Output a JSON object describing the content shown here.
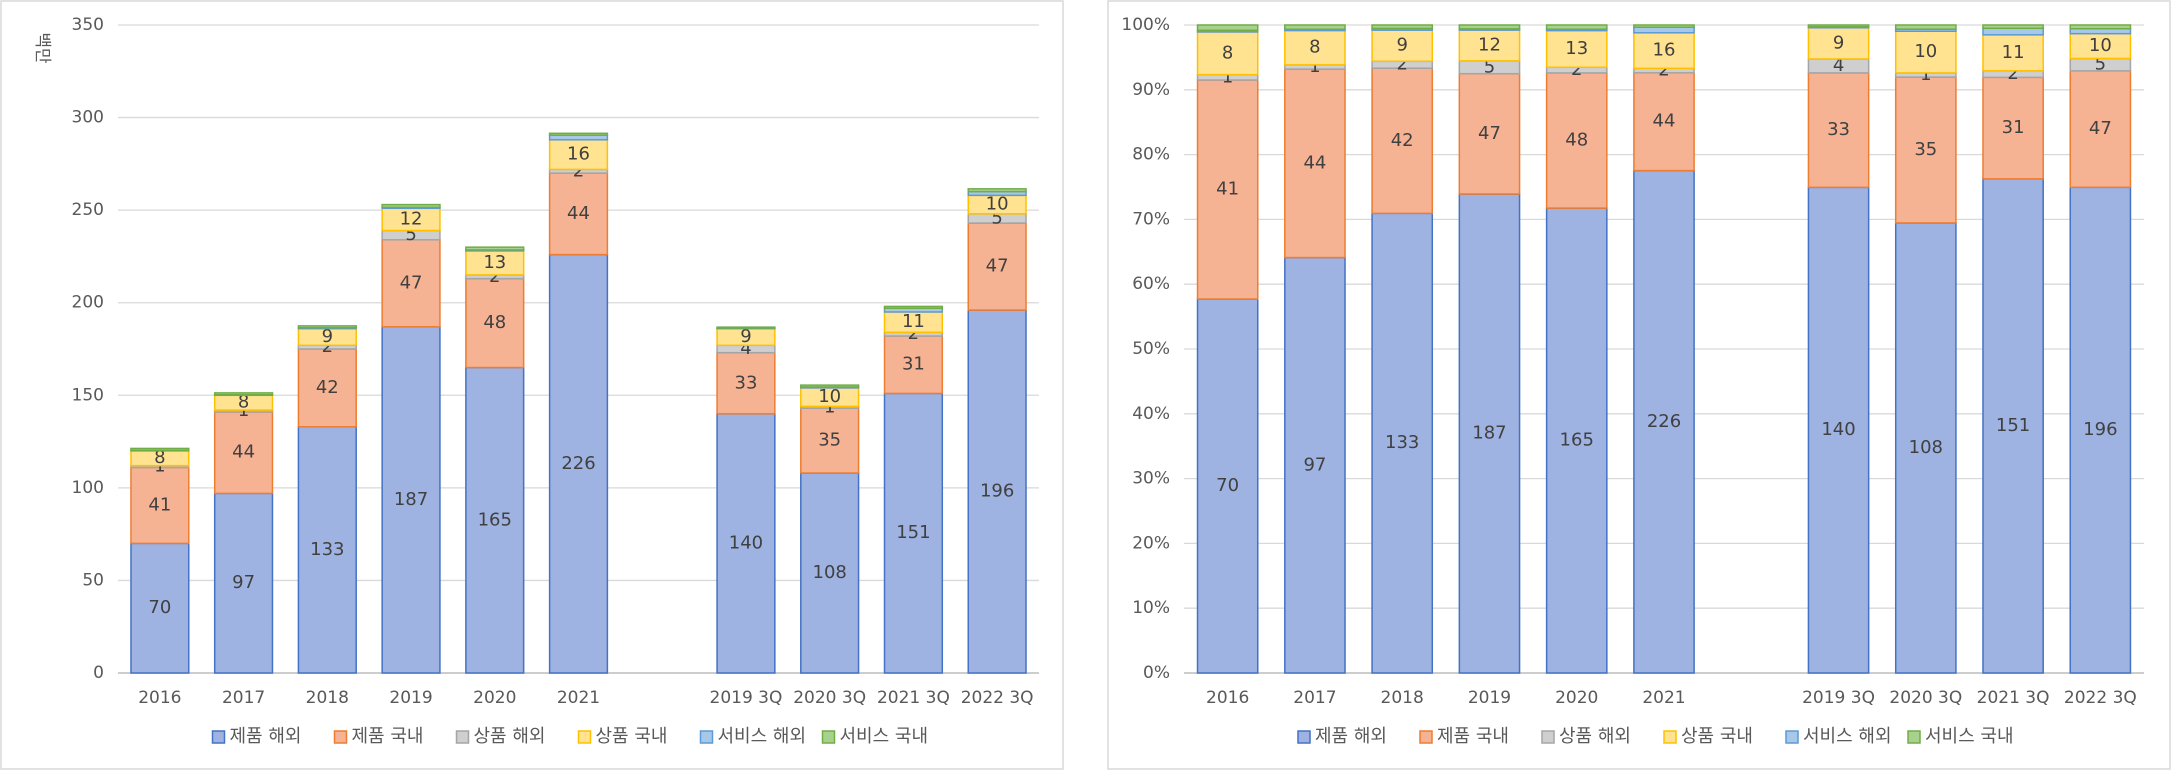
{
  "chart_data": [
    {
      "type": "bar",
      "stacked": true,
      "y_label": "백만",
      "categories": [
        "2016",
        "2017",
        "2018",
        "2019",
        "2020",
        "2021",
        null,
        "2019 3Q",
        "2020 3Q",
        "2021 3Q",
        "2022 3Q"
      ],
      "ylim": [
        0,
        350
      ],
      "yticks": [
        0,
        50,
        100,
        150,
        200,
        250,
        300,
        350
      ],
      "grid": true,
      "legend": "bottom",
      "series": [
        {
          "name": "제품 해외",
          "color": "#9fb3e2",
          "edge": "#4472c4",
          "data_labels": true,
          "values": [
            70,
            97,
            133,
            187,
            165,
            226,
            null,
            140,
            108,
            151,
            196
          ]
        },
        {
          "name": "제품 국내",
          "color": "#f6b394",
          "edge": "#ed7d31",
          "data_labels": true,
          "values": [
            41,
            44,
            42,
            47,
            48,
            44,
            null,
            33,
            35,
            31,
            47
          ]
        },
        {
          "name": "상품 해외",
          "color": "#cfcfcf",
          "edge": "#a5a5a5",
          "data_labels": true,
          "values": [
            1,
            1,
            2,
            5,
            2,
            2,
            null,
            4,
            1,
            2,
            5
          ]
        },
        {
          "name": "상품 국내",
          "color": "#ffe391",
          "edge": "#ffc000",
          "data_labels": true,
          "values": [
            8,
            8,
            9,
            12,
            13,
            16,
            null,
            9,
            10,
            11,
            10
          ]
        },
        {
          "name": "서비스 해외",
          "color": "#a8c8ea",
          "edge": "#5b9bd5",
          "data_labels": false,
          "values": [
            0.3,
            0.3,
            0.5,
            0.5,
            0.5,
            2.5,
            null,
            0.3,
            0.5,
            2,
            2
          ]
        },
        {
          "name": "서비스 국내",
          "color": "#a9d18e",
          "edge": "#70ad47",
          "data_labels": false,
          "values": [
            1,
            1,
            1,
            1.5,
            1.5,
            1,
            null,
            0.5,
            1,
            1,
            1.5
          ]
        }
      ]
    },
    {
      "type": "bar",
      "stacked": "percent",
      "categories": [
        "2016",
        "2017",
        "2018",
        "2019",
        "2020",
        "2021",
        null,
        "2019 3Q",
        "2020 3Q",
        "2021 3Q",
        "2022 3Q"
      ],
      "ylim": [
        0,
        100
      ],
      "yticks": [
        {
          "value": 0,
          "label": "0%"
        },
        {
          "value": 10,
          "label": "10%"
        },
        {
          "value": 20,
          "label": "20%"
        },
        {
          "value": 30,
          "label": "30%"
        },
        {
          "value": 40,
          "label": "40%"
        },
        {
          "value": 50,
          "label": "50%"
        },
        {
          "value": 60,
          "label": "60%"
        },
        {
          "value": 70,
          "label": "70%"
        },
        {
          "value": 80,
          "label": "80%"
        },
        {
          "value": 90,
          "label": "90%"
        },
        {
          "value": 100,
          "label": "100%"
        }
      ],
      "grid": true,
      "legend": "bottom",
      "series": [
        {
          "name": "제품 해외",
          "color": "#9fb3e2",
          "edge": "#4472c4",
          "data_labels": true,
          "values": [
            70,
            97,
            133,
            187,
            165,
            226,
            null,
            140,
            108,
            151,
            196
          ]
        },
        {
          "name": "제품 국내",
          "color": "#f6b394",
          "edge": "#ed7d31",
          "data_labels": true,
          "values": [
            41,
            44,
            42,
            47,
            48,
            44,
            null,
            33,
            35,
            31,
            47
          ]
        },
        {
          "name": "상품 해외",
          "color": "#cfcfcf",
          "edge": "#a5a5a5",
          "data_labels": true,
          "values": [
            1,
            1,
            2,
            5,
            2,
            2,
            null,
            4,
            1,
            2,
            5
          ]
        },
        {
          "name": "상품 국내",
          "color": "#ffe391",
          "edge": "#ffc000",
          "data_labels": true,
          "values": [
            8,
            8,
            9,
            12,
            13,
            16,
            null,
            9,
            10,
            11,
            10
          ]
        },
        {
          "name": "서비스 해외",
          "color": "#a8c8ea",
          "edge": "#5b9bd5",
          "data_labels": false,
          "values": [
            0.3,
            0.3,
            0.5,
            0.5,
            0.5,
            2.5,
            null,
            0.3,
            0.5,
            2,
            2
          ]
        },
        {
          "name": "서비스 국내",
          "color": "#a9d18e",
          "edge": "#70ad47",
          "data_labels": false,
          "values": [
            1,
            1,
            1,
            1.5,
            1.5,
            1,
            null,
            0.5,
            1,
            1,
            1.5
          ]
        }
      ]
    }
  ]
}
